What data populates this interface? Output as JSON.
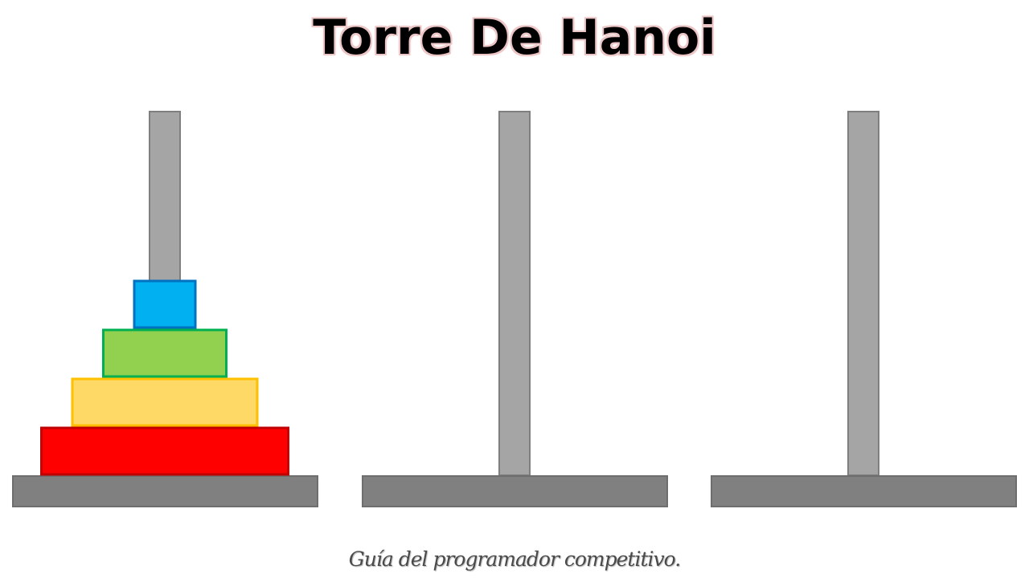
{
  "title": "Torre De Hanoi",
  "caption": "Guía del programador competitivo.",
  "colors": {
    "post_fill": "#a5a5a5",
    "post_stroke": "#7f7f7f",
    "base_fill": "#808080",
    "base_stroke": "#6e6e6e"
  },
  "towers": [
    {
      "name": "left-tower",
      "disks": [
        {
          "size": 4,
          "fill": "#ff0000",
          "stroke": "#c00000"
        },
        {
          "size": 3,
          "fill": "#ffd966",
          "stroke": "#ffc000"
        },
        {
          "size": 2,
          "fill": "#92d050",
          "stroke": "#00b050"
        },
        {
          "size": 1,
          "fill": "#00b0f0",
          "stroke": "#0070c0"
        }
      ]
    },
    {
      "name": "middle-tower",
      "disks": []
    },
    {
      "name": "right-tower",
      "disks": []
    }
  ]
}
